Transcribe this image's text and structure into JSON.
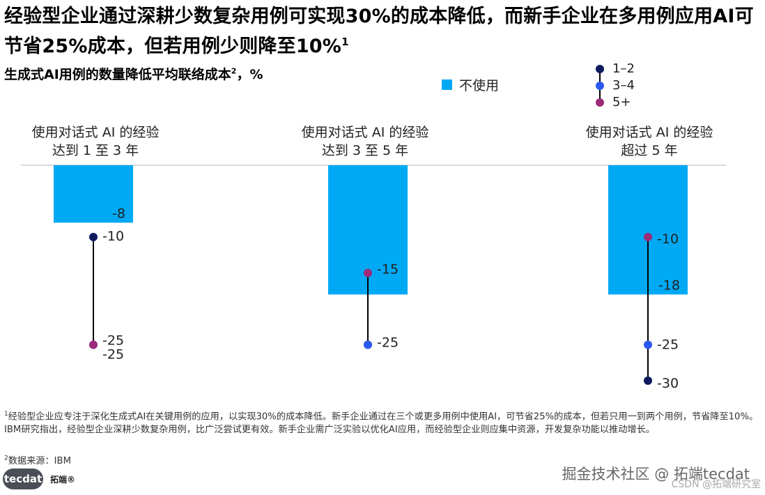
{
  "title": "经验型企业通过深耕少数复杂用例可实现30%的成本降低，而新手企业在多用例应用AI可节省25%成本，但若用例少则降至10%",
  "title_footnote_mark": "1",
  "subtitle": "生成式AI用例的数量降低平均联络成本",
  "subtitle_footnote_mark": "2",
  "subtitle_unit": "，%",
  "legend": {
    "bar_label": "不使用",
    "dot_labels": [
      "1–2",
      "3–4",
      "5+"
    ]
  },
  "colors": {
    "bar": "#00a9f4",
    "dot_1_2": "#0d1b5e",
    "dot_3_4": "#2b59f0",
    "dot_5_plus": "#9c2b7a",
    "axis": "#b0b0b0"
  },
  "chart_data": {
    "type": "bar",
    "categories": [
      [
        "使用对话式 AI 的经验",
        "达到 1 至 3 年"
      ],
      [
        "使用对话式 AI 的经验",
        "达到 3 至 5 年"
      ],
      [
        "使用对话式 AI 的经验",
        "超过 5 年"
      ]
    ],
    "series": [
      {
        "name": "不使用",
        "values": [
          -8,
          -18,
          -18
        ]
      },
      {
        "name": "1–2",
        "values": [
          -10,
          -25,
          -30
        ]
      },
      {
        "name": "3–4",
        "values": [
          -25,
          -25,
          -25
        ]
      },
      {
        "name": "5+",
        "values": [
          -25,
          -15,
          -10
        ]
      }
    ],
    "bar_labels": [
      "-8",
      "",
      "-18"
    ],
    "dot_labels": [
      [
        "-10",
        "-25",
        "-25"
      ],
      [
        "-15",
        "-25"
      ],
      [
        "-10",
        "-25",
        "-30"
      ]
    ],
    "ylim": [
      -32,
      0
    ],
    "legend_position": "top-right"
  },
  "footnotes": {
    "note1_mark": "1",
    "note1": "经验型企业应专注于深化生成式AI在关键用例的应用，以实现30%的成本降低。新手企业通过在三个或更多用例中使用AI，可节省25%的成本，但若只用一到两个用例，节省降至10%。IBM研究指出，经验型企业深耕少数复杂用例，比广泛尝试更有效。新手企业需广泛实验以优化AI应用，而经验型企业则应集中资源，开发复杂功能以推动增长。",
    "note2_mark": "2",
    "note2": "数据来源：IBM"
  },
  "logo": {
    "name": "tecdat",
    "brand": "拓端®"
  },
  "watermark": "掘金技术社区 @ 拓端tecdat",
  "watermark2": "CSDN @拓端研究室"
}
